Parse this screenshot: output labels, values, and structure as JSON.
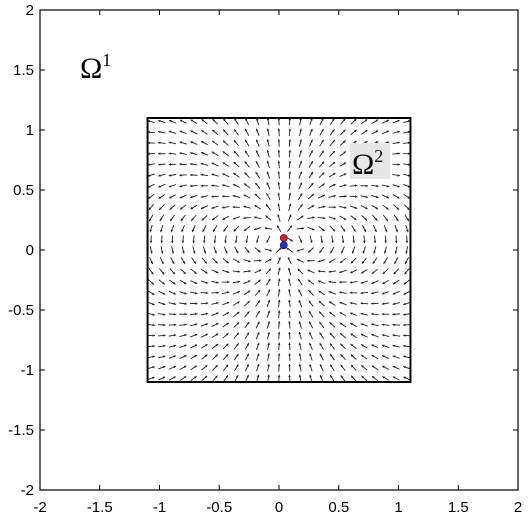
{
  "chart_data": {
    "type": "vector_field",
    "xlim": [
      -2,
      2
    ],
    "ylim": [
      -2,
      2
    ],
    "x_ticks": [
      -2,
      -1.5,
      -1,
      -0.5,
      0,
      0.5,
      1,
      1.5,
      2
    ],
    "y_ticks": [
      -2,
      -1.5,
      -1,
      -0.5,
      0,
      0.5,
      1,
      1.5,
      2
    ],
    "x_tick_labels": [
      "-2",
      "-1.5",
      "-1",
      "-0.5",
      "0",
      "0.5",
      "1",
      "1.5",
      "2"
    ],
    "y_tick_labels": [
      "-2",
      "-1.5",
      "-1",
      "-0.5",
      "0",
      "0.5",
      "1",
      "1.5",
      "2"
    ],
    "grid": false,
    "outer_region_label": {
      "base": "Ω",
      "sup": "1"
    },
    "inner_region_label": {
      "base": "Ω",
      "sup": "2"
    },
    "inner_square": {
      "x": [
        -1.1,
        1.1
      ],
      "y": [
        -1.1,
        1.1
      ]
    },
    "field": {
      "description_type": "dipole",
      "grid_points_per_side": 25,
      "dipole_center": [
        0.04,
        0.07
      ]
    },
    "points": [
      {
        "name": "positive",
        "x": 0.04,
        "y": 0.1,
        "color": "#cc2222"
      },
      {
        "name": "negative",
        "x": 0.04,
        "y": 0.04,
        "color": "#1f2fd0"
      }
    ],
    "colors": {
      "axis": "#000000",
      "arrow": "#222222",
      "label_bg": "#e6e6e6"
    }
  }
}
